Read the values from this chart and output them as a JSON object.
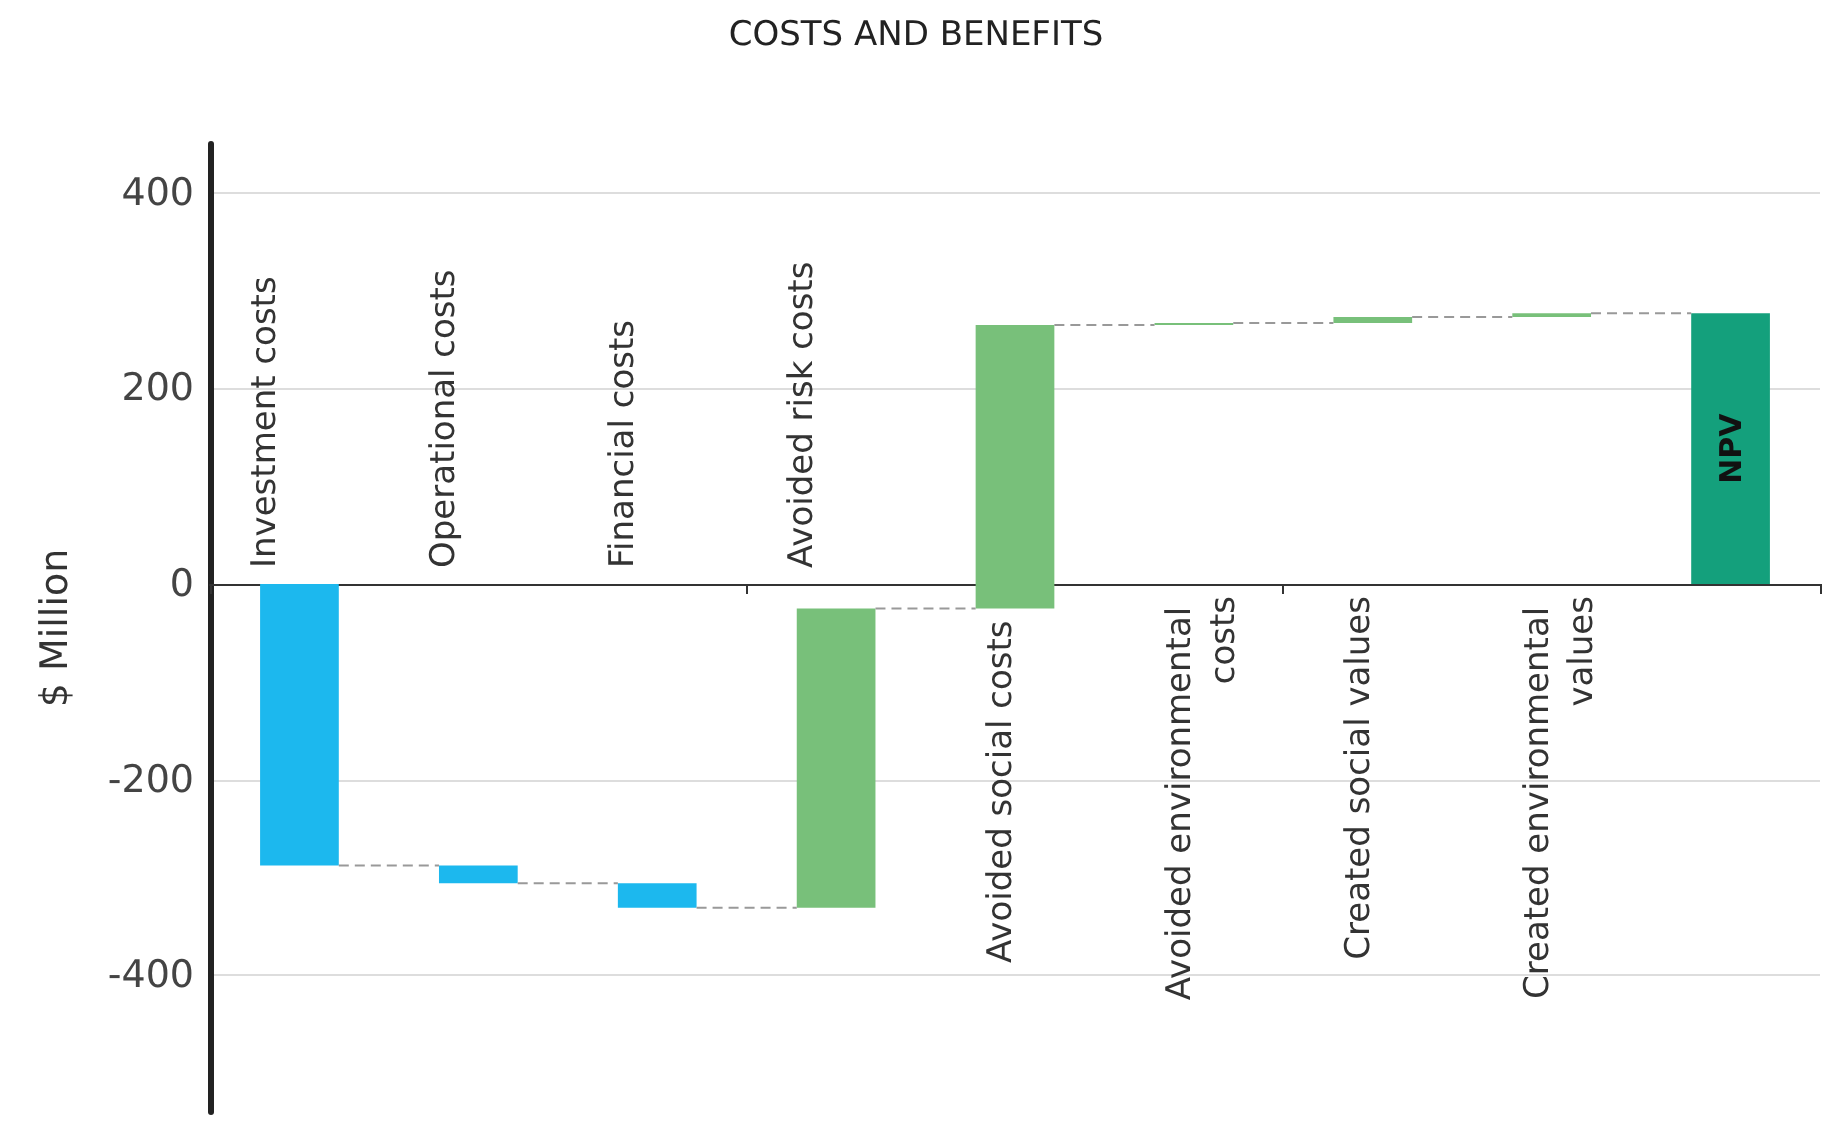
{
  "chart_data": {
    "type": "bar",
    "title": "COSTS AND BENEFITS",
    "ylabel": "$ Million",
    "categories": [
      "Investment costs",
      "Operational costs",
      "Financial costs",
      "Avoided risk costs",
      "Avoided social costs",
      "Avoided environmental costs",
      "Created social values",
      "Created environmental values",
      "NPV"
    ],
    "base": [
      0,
      -288,
      -306,
      -331,
      -25,
      265,
      267,
      273,
      0
    ],
    "values": [
      -288,
      -18,
      -25,
      306,
      290,
      2,
      6,
      4,
      277
    ],
    "colors": [
      "#1cb8ee",
      "#1cb8ee",
      "#1cb8ee",
      "#78c07a",
      "#78c07a",
      "#78c07a",
      "#78c07a",
      "#78c07a",
      "#14a07c"
    ],
    "ylim": [
      -540,
      450
    ],
    "yticks": [
      -400,
      -200,
      0,
      200,
      400
    ],
    "grid": "y"
  }
}
